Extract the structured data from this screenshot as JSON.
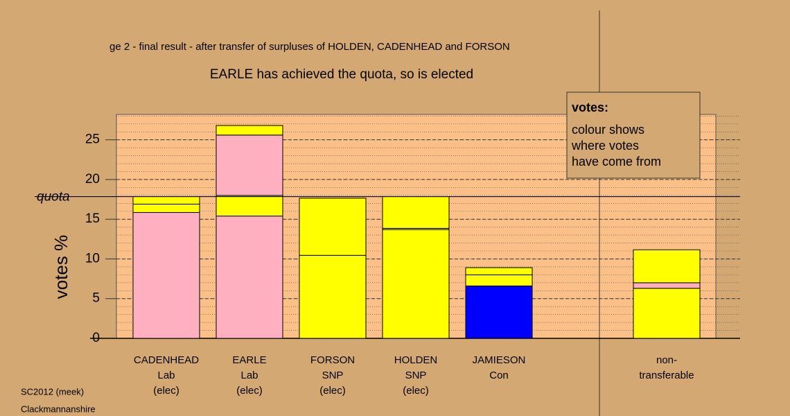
{
  "chart_data": {
    "type": "bar",
    "stacked": true,
    "title": "ge 2 - final result - after transfer of surpluses of HOLDEN, CADENHEAD and FORSON",
    "subtitle": "EARLE has achieved the quota, so is elected",
    "y_label": "votes %",
    "categories": [
      [
        "CADENHEAD",
        "Lab",
        "(elec)"
      ],
      [
        "EARLE",
        "Lab",
        "(elec)"
      ],
      [
        "FORSON",
        "SNP",
        "(elec)"
      ],
      [
        "HOLDEN",
        "SNP",
        "(elec)"
      ],
      [
        "JAMIESON",
        "Con"
      ],
      [
        "non-",
        "transferable"
      ]
    ],
    "series": [
      {
        "values": [
          15.85,
          15.4,
          10.45,
          13.7,
          6.6,
          6.3
        ],
        "colors": [
          "#ffb0c0",
          "#ffb0c0",
          "#ffff00",
          "#ffff00",
          "#0000ff",
          "#ffff00"
        ]
      },
      {
        "values": [
          1.05,
          2.6,
          7.2,
          0.15,
          1.4,
          0.7
        ],
        "colors": [
          "#ffff00",
          "#ffff00",
          "#ffff00",
          "#ffff00",
          "#ffff00",
          "#ffb0c0"
        ]
      },
      {
        "values": [
          0.95,
          7.6,
          null,
          4.0,
          0.9,
          4.15
        ],
        "colors": [
          "#ffff00",
          "#ffb0c0",
          null,
          "#ffff00",
          "#ffff00",
          "#ffff00"
        ]
      },
      {
        "values": [
          null,
          1.2,
          null,
          null,
          null,
          null
        ],
        "colors": [
          null,
          "#ffff00",
          null,
          null,
          null,
          null
        ]
      }
    ],
    "ylim": [
      0,
      28.2
    ],
    "yticks": [
      0,
      5,
      10,
      15,
      20,
      25
    ],
    "minor_grid_step": 1,
    "grid": true,
    "quota": {
      "label": "quota",
      "value": 17.85
    },
    "note": {
      "title": "votes:",
      "lines": [
        "colour shows",
        "where votes",
        "have come from"
      ]
    },
    "footer": [
      "SC2012 (meek)",
      "Clackmannanshire"
    ]
  }
}
